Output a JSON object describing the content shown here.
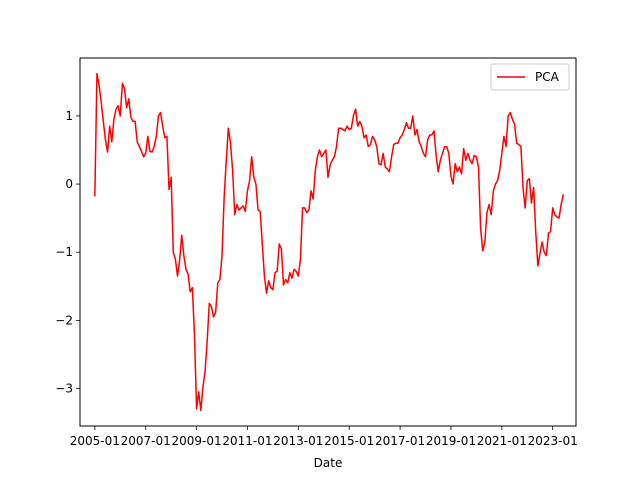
{
  "chart_data": {
    "type": "line",
    "title": "",
    "xlabel": "Date",
    "ylabel": "",
    "x_ticks": [
      "2005-01",
      "2007-01",
      "2009-01",
      "2011-01",
      "2013-01",
      "2015-01",
      "2017-01",
      "2019-01",
      "2021-01",
      "2023-01"
    ],
    "y_ticks": [
      "−3",
      "−2",
      "−1",
      "0",
      "1"
    ],
    "xlim": [
      "2004-06",
      "2023-12"
    ],
    "ylim": [
      -3.55,
      1.85
    ],
    "grid": false,
    "legend": {
      "position": "top-right",
      "entries": [
        "PCA"
      ]
    },
    "series": [
      {
        "name": "PCA",
        "color": "#ff0000",
        "points": [
          [
            "2005-01",
            -0.18
          ],
          [
            "2005-02",
            1.62
          ],
          [
            "2005-03",
            1.45
          ],
          [
            "2005-04",
            1.2
          ],
          [
            "2005-05",
            0.92
          ],
          [
            "2005-06",
            0.65
          ],
          [
            "2005-07",
            0.47
          ],
          [
            "2005-08",
            0.85
          ],
          [
            "2005-09",
            0.62
          ],
          [
            "2005-10",
            0.95
          ],
          [
            "2005-11",
            1.1
          ],
          [
            "2005-12",
            1.15
          ],
          [
            "2006-01",
            1.0
          ],
          [
            "2006-02",
            1.48
          ],
          [
            "2006-03",
            1.4
          ],
          [
            "2006-04",
            1.12
          ],
          [
            "2006-05",
            1.25
          ],
          [
            "2006-06",
            0.98
          ],
          [
            "2006-07",
            0.92
          ],
          [
            "2006-08",
            0.92
          ],
          [
            "2006-09",
            0.62
          ],
          [
            "2006-10",
            0.55
          ],
          [
            "2006-11",
            0.48
          ],
          [
            "2006-12",
            0.4
          ],
          [
            "2007-01",
            0.45
          ],
          [
            "2007-02",
            0.7
          ],
          [
            "2007-03",
            0.48
          ],
          [
            "2007-04",
            0.47
          ],
          [
            "2007-05",
            0.55
          ],
          [
            "2007-06",
            0.7
          ],
          [
            "2007-07",
            1.0
          ],
          [
            "2007-08",
            1.05
          ],
          [
            "2007-09",
            0.85
          ],
          [
            "2007-10",
            0.68
          ],
          [
            "2007-11",
            0.7
          ],
          [
            "2007-12",
            -0.08
          ],
          [
            "2008-01",
            0.1
          ],
          [
            "2008-02",
            -1.0
          ],
          [
            "2008-03",
            -1.1
          ],
          [
            "2008-04",
            -1.35
          ],
          [
            "2008-05",
            -1.12
          ],
          [
            "2008-06",
            -0.75
          ],
          [
            "2008-07",
            -1.05
          ],
          [
            "2008-08",
            -1.25
          ],
          [
            "2008-09",
            -1.32
          ],
          [
            "2008-10",
            -1.58
          ],
          [
            "2008-11",
            -1.52
          ],
          [
            "2008-12",
            -2.2
          ],
          [
            "2009-01",
            -3.3
          ],
          [
            "2009-02",
            -3.05
          ],
          [
            "2009-03",
            -3.32
          ],
          [
            "2009-04",
            -2.98
          ],
          [
            "2009-05",
            -2.75
          ],
          [
            "2009-06",
            -2.3
          ],
          [
            "2009-07",
            -1.75
          ],
          [
            "2009-08",
            -1.8
          ],
          [
            "2009-09",
            -1.95
          ],
          [
            "2009-10",
            -1.88
          ],
          [
            "2009-11",
            -1.45
          ],
          [
            "2009-12",
            -1.4
          ],
          [
            "2010-01",
            -1.05
          ],
          [
            "2010-02",
            -0.2
          ],
          [
            "2010-03",
            0.35
          ],
          [
            "2010-04",
            0.82
          ],
          [
            "2010-05",
            0.6
          ],
          [
            "2010-06",
            0.2
          ],
          [
            "2010-07",
            -0.45
          ],
          [
            "2010-08",
            -0.3
          ],
          [
            "2010-09",
            -0.38
          ],
          [
            "2010-10",
            -0.35
          ],
          [
            "2010-11",
            -0.32
          ],
          [
            "2010-12",
            -0.4
          ],
          [
            "2011-01",
            -0.1
          ],
          [
            "2011-02",
            0.05
          ],
          [
            "2011-03",
            0.4
          ],
          [
            "2011-04",
            0.1
          ],
          [
            "2011-05",
            0.0
          ],
          [
            "2011-06",
            -0.38
          ],
          [
            "2011-07",
            -0.4
          ],
          [
            "2011-08",
            -0.88
          ],
          [
            "2011-09",
            -1.35
          ],
          [
            "2011-10",
            -1.6
          ],
          [
            "2011-11",
            -1.42
          ],
          [
            "2011-12",
            -1.52
          ],
          [
            "2012-01",
            -1.55
          ],
          [
            "2012-02",
            -1.3
          ],
          [
            "2012-03",
            -1.28
          ],
          [
            "2012-04",
            -0.88
          ],
          [
            "2012-05",
            -0.95
          ],
          [
            "2012-06",
            -1.48
          ],
          [
            "2012-07",
            -1.4
          ],
          [
            "2012-08",
            -1.45
          ],
          [
            "2012-09",
            -1.3
          ],
          [
            "2012-10",
            -1.38
          ],
          [
            "2012-11",
            -1.25
          ],
          [
            "2012-12",
            -1.28
          ],
          [
            "2013-01",
            -1.35
          ],
          [
            "2013-02",
            -1.1
          ],
          [
            "2013-03",
            -0.35
          ],
          [
            "2013-04",
            -0.35
          ],
          [
            "2013-05",
            -0.42
          ],
          [
            "2013-06",
            -0.38
          ],
          [
            "2013-07",
            -0.1
          ],
          [
            "2013-08",
            -0.22
          ],
          [
            "2013-09",
            0.2
          ],
          [
            "2013-10",
            0.4
          ],
          [
            "2013-11",
            0.5
          ],
          [
            "2013-12",
            0.4
          ],
          [
            "2014-01",
            0.45
          ],
          [
            "2014-02",
            0.5
          ],
          [
            "2014-03",
            0.1
          ],
          [
            "2014-04",
            0.28
          ],
          [
            "2014-05",
            0.35
          ],
          [
            "2014-06",
            0.4
          ],
          [
            "2014-07",
            0.55
          ],
          [
            "2014-08",
            0.82
          ],
          [
            "2014-09",
            0.82
          ],
          [
            "2014-10",
            0.8
          ],
          [
            "2014-11",
            0.78
          ],
          [
            "2014-12",
            0.85
          ],
          [
            "2015-01",
            0.8
          ],
          [
            "2015-02",
            0.82
          ],
          [
            "2015-03",
            1.0
          ],
          [
            "2015-04",
            1.1
          ],
          [
            "2015-05",
            0.85
          ],
          [
            "2015-06",
            0.92
          ],
          [
            "2015-07",
            0.85
          ],
          [
            "2015-08",
            0.68
          ],
          [
            "2015-09",
            0.72
          ],
          [
            "2015-10",
            0.55
          ],
          [
            "2015-11",
            0.58
          ],
          [
            "2015-12",
            0.7
          ],
          [
            "2016-01",
            0.65
          ],
          [
            "2016-02",
            0.55
          ],
          [
            "2016-03",
            0.3
          ],
          [
            "2016-04",
            0.28
          ],
          [
            "2016-05",
            0.45
          ],
          [
            "2016-06",
            0.25
          ],
          [
            "2016-07",
            0.22
          ],
          [
            "2016-08",
            0.18
          ],
          [
            "2016-09",
            0.4
          ],
          [
            "2016-10",
            0.58
          ],
          [
            "2016-11",
            0.6
          ],
          [
            "2016-12",
            0.6
          ],
          [
            "2017-01",
            0.68
          ],
          [
            "2017-02",
            0.72
          ],
          [
            "2017-03",
            0.8
          ],
          [
            "2017-04",
            0.9
          ],
          [
            "2017-05",
            0.82
          ],
          [
            "2017-06",
            0.82
          ],
          [
            "2017-07",
            1.0
          ],
          [
            "2017-08",
            0.72
          ],
          [
            "2017-09",
            0.8
          ],
          [
            "2017-10",
            0.62
          ],
          [
            "2017-11",
            0.55
          ],
          [
            "2017-12",
            0.45
          ],
          [
            "2018-01",
            0.4
          ],
          [
            "2018-02",
            0.65
          ],
          [
            "2018-03",
            0.72
          ],
          [
            "2018-04",
            0.72
          ],
          [
            "2018-05",
            0.78
          ],
          [
            "2018-06",
            0.42
          ],
          [
            "2018-07",
            0.18
          ],
          [
            "2018-08",
            0.35
          ],
          [
            "2018-09",
            0.45
          ],
          [
            "2018-10",
            0.55
          ],
          [
            "2018-11",
            0.55
          ],
          [
            "2018-12",
            0.45
          ],
          [
            "2019-01",
            0.12
          ],
          [
            "2019-02",
            0.0
          ],
          [
            "2019-03",
            0.3
          ],
          [
            "2019-04",
            0.18
          ],
          [
            "2019-05",
            0.25
          ],
          [
            "2019-06",
            0.15
          ],
          [
            "2019-07",
            0.52
          ],
          [
            "2019-08",
            0.35
          ],
          [
            "2019-09",
            0.45
          ],
          [
            "2019-10",
            0.35
          ],
          [
            "2019-11",
            0.3
          ],
          [
            "2019-12",
            0.42
          ],
          [
            "2020-01",
            0.4
          ],
          [
            "2020-02",
            0.25
          ],
          [
            "2020-03",
            -0.65
          ],
          [
            "2020-04",
            -0.98
          ],
          [
            "2020-05",
            -0.85
          ],
          [
            "2020-06",
            -0.42
          ],
          [
            "2020-07",
            -0.3
          ],
          [
            "2020-08",
            -0.45
          ],
          [
            "2020-09",
            -0.1
          ],
          [
            "2020-10",
            0.0
          ],
          [
            "2020-11",
            0.05
          ],
          [
            "2020-12",
            0.2
          ],
          [
            "2021-01",
            0.45
          ],
          [
            "2021-02",
            0.7
          ],
          [
            "2021-03",
            0.55
          ],
          [
            "2021-04",
            1.0
          ],
          [
            "2021-05",
            1.05
          ],
          [
            "2021-06",
            0.95
          ],
          [
            "2021-07",
            0.88
          ],
          [
            "2021-08",
            0.6
          ],
          [
            "2021-09",
            0.58
          ],
          [
            "2021-10",
            0.55
          ],
          [
            "2021-11",
            -0.05
          ],
          [
            "2021-12",
            -0.35
          ],
          [
            "2022-01",
            0.05
          ],
          [
            "2022-02",
            0.08
          ],
          [
            "2022-03",
            -0.28
          ],
          [
            "2022-04",
            -0.05
          ],
          [
            "2022-05",
            -0.7
          ],
          [
            "2022-06",
            -1.2
          ],
          [
            "2022-07",
            -1.02
          ],
          [
            "2022-08",
            -0.85
          ],
          [
            "2022-09",
            -1.0
          ],
          [
            "2022-10",
            -1.05
          ],
          [
            "2022-11",
            -0.72
          ],
          [
            "2022-12",
            -0.7
          ],
          [
            "2023-01",
            -0.35
          ],
          [
            "2023-02",
            -0.45
          ],
          [
            "2023-03",
            -0.48
          ],
          [
            "2023-04",
            -0.5
          ],
          [
            "2023-05",
            -0.3
          ],
          [
            "2023-06",
            -0.15
          ]
        ]
      }
    ]
  }
}
